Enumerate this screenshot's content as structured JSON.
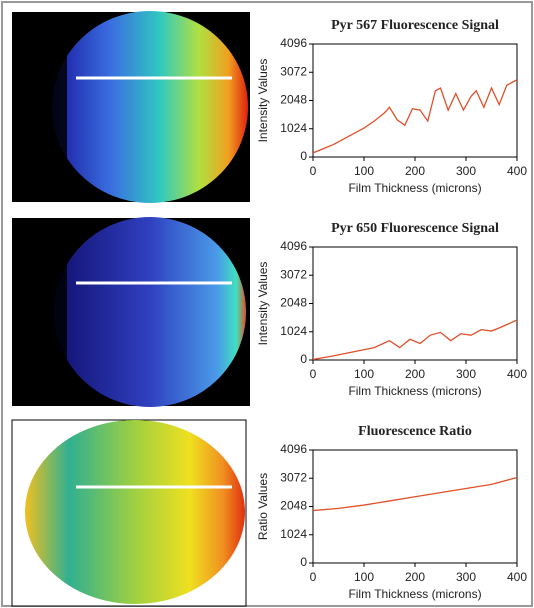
{
  "chart_data": [
    {
      "type": "line",
      "title": "Pyr 567 Fluorescence Signal",
      "xlabel": "Film Thickness (microns)",
      "ylabel": "Intensity Values",
      "x": [
        0,
        20,
        40,
        60,
        80,
        100,
        120,
        140,
        150,
        165,
        180,
        195,
        210,
        225,
        240,
        250,
        265,
        280,
        295,
        310,
        320,
        335,
        350,
        365,
        380,
        400
      ],
      "values": [
        150,
        300,
        450,
        650,
        850,
        1050,
        1300,
        1600,
        1800,
        1350,
        1150,
        1750,
        1700,
        1300,
        2400,
        2500,
        1700,
        2300,
        1700,
        2200,
        2400,
        1800,
        2500,
        1900,
        2600,
        2800
      ],
      "color": "#e0502a",
      "xlim": [
        0,
        400
      ],
      "ylim": [
        0,
        4096
      ],
      "xticks": [
        0,
        100,
        200,
        300,
        400
      ],
      "yticks": [
        0,
        1024,
        2048,
        3072,
        4096
      ]
    },
    {
      "type": "line",
      "title": "Pyr 650 Fluorescence Signal",
      "xlabel": "Film Thickness (microns)",
      "ylabel": "Intensity Values",
      "x": [
        0,
        40,
        80,
        120,
        150,
        170,
        190,
        210,
        230,
        250,
        270,
        290,
        310,
        330,
        350,
        370,
        400
      ],
      "values": [
        20,
        150,
        300,
        450,
        700,
        450,
        750,
        600,
        900,
        1000,
        700,
        950,
        900,
        1100,
        1050,
        1200,
        1450
      ],
      "color": "#e0502a",
      "xlim": [
        0,
        400
      ],
      "ylim": [
        0,
        4096
      ],
      "xticks": [
        0,
        100,
        200,
        300,
        400
      ],
      "yticks": [
        0,
        1024,
        2048,
        3072,
        4096
      ]
    },
    {
      "type": "line",
      "title": "Fluorescence Ratio",
      "xlabel": "Film Thickness (microns)",
      "ylabel": "Ratio Values",
      "x": [
        0,
        50,
        100,
        150,
        200,
        250,
        300,
        350,
        400
      ],
      "values": [
        1900,
        1980,
        2100,
        2250,
        2400,
        2550,
        2700,
        2850,
        3100
      ],
      "color": "#e0502a",
      "xlim": [
        0,
        400
      ],
      "ylim": [
        0,
        4096
      ],
      "xticks": [
        0,
        100,
        200,
        300,
        400
      ],
      "yticks": [
        0,
        1024,
        2048,
        3072,
        4096
      ]
    }
  ]
}
